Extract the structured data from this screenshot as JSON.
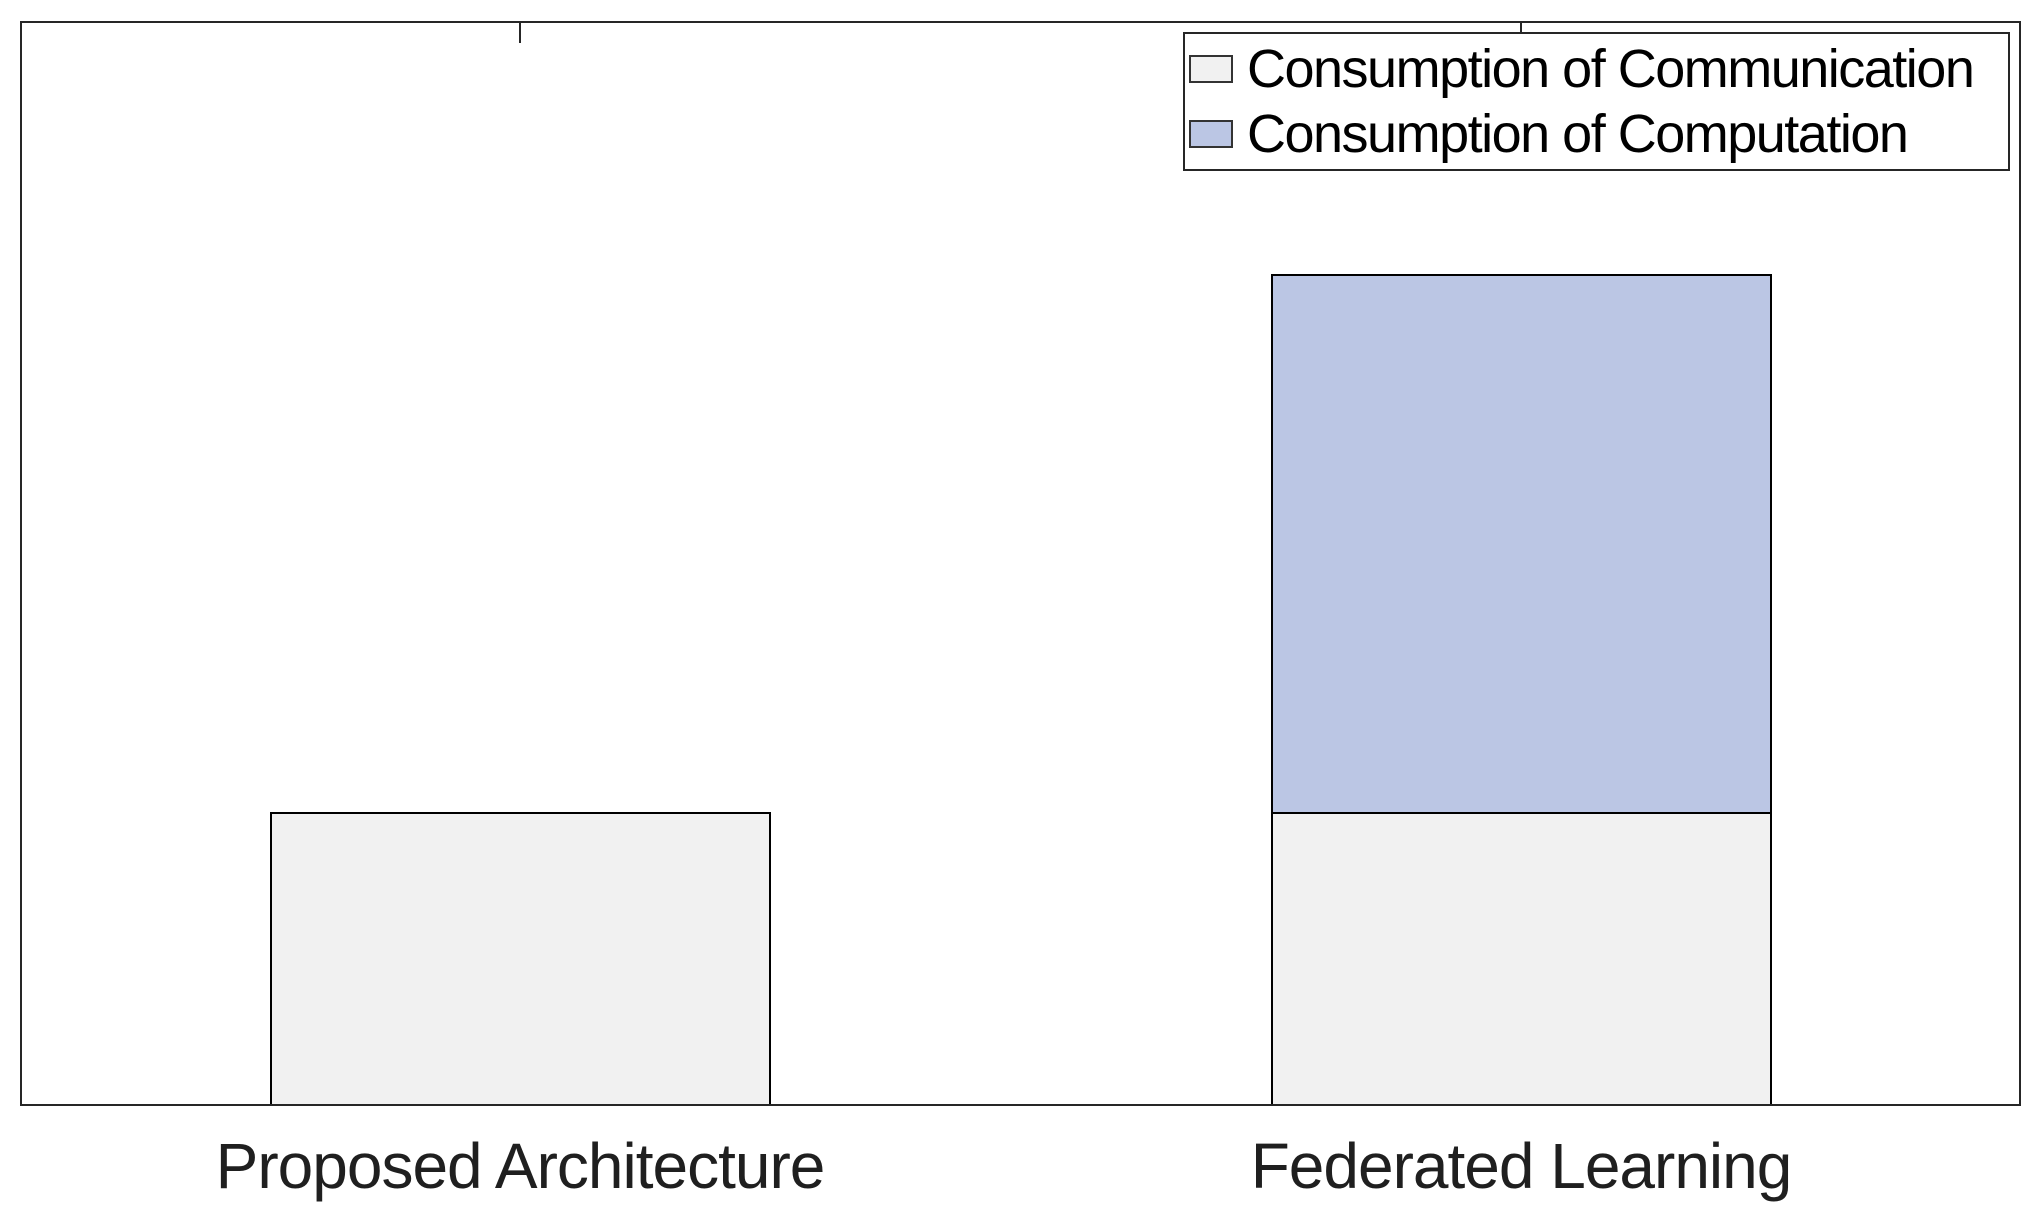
{
  "figure": {
    "background_color": "#ffffff",
    "axis_color": "#262626",
    "bar_edge_color": "#000000"
  },
  "chart_data": {
    "type": "bar",
    "stacked": true,
    "orientation": "vertical",
    "title": "",
    "xlabel": "",
    "ylabel": "",
    "categories": [
      "Proposed Architecture",
      "Federated Learning"
    ],
    "series": [
      {
        "name": "Consumption of Communication",
        "color": "#f1f1f1",
        "edge_color": "#000000",
        "values": [
          0.27,
          0.27
        ]
      },
      {
        "name": "Consumption of Computation",
        "color": "#bbc6e4",
        "edge_color": "#000000",
        "values": [
          0,
          0.5
        ]
      }
    ],
    "ylim": [
      0,
      1
    ],
    "value_basis": "fraction of y-axis range (axis has no numeric tick labels)",
    "y_tick_labels": [],
    "grid": false,
    "legend": {
      "position": "top-right",
      "entries": [
        "Consumption of Communication",
        "Consumption of Computation"
      ]
    }
  }
}
